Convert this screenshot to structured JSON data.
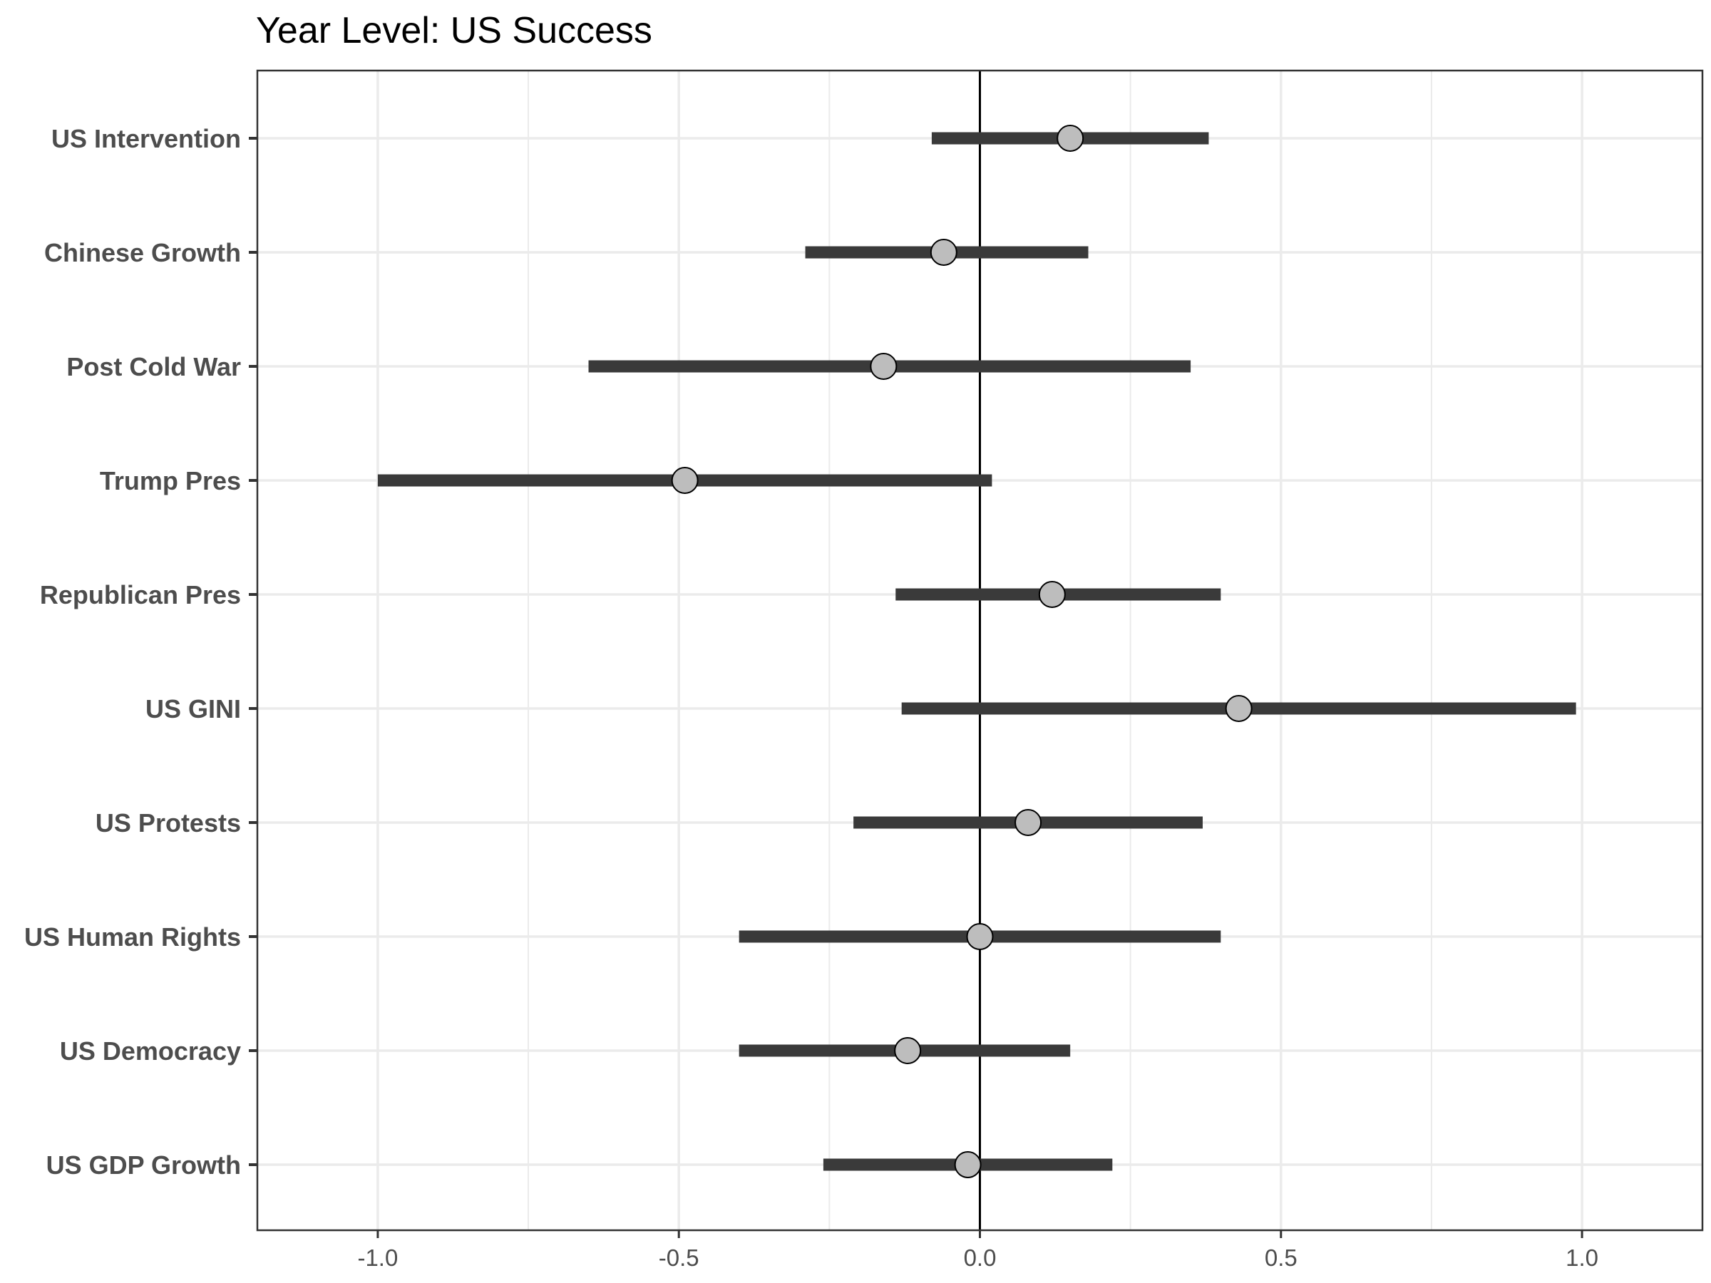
{
  "chart_data": {
    "type": "scatter",
    "subtype": "coefficient-plot",
    "title": "Year Level: US Success",
    "xlabel": "",
    "ylabel": "",
    "xlim": [
      -1.2,
      1.2
    ],
    "x_ticks": [
      -1.0,
      -0.5,
      0.0,
      0.5,
      1.0
    ],
    "x_tick_labels": [
      "-1.0",
      "-0.5",
      "0.0",
      "0.5",
      "1.0"
    ],
    "reference_line_x": 0,
    "grid": true,
    "colors": {
      "interval": "#3a3a3a",
      "point_fill": "#bdbdbd",
      "point_stroke": "#000000",
      "grid": "#ebebeb",
      "reference_line": "#000000",
      "panel_border": "#333333"
    },
    "points": [
      {
        "label": "US Intervention",
        "estimate": 0.15,
        "lower": -0.08,
        "upper": 0.38
      },
      {
        "label": "Chinese Growth",
        "estimate": -0.06,
        "lower": -0.29,
        "upper": 0.18
      },
      {
        "label": "Post Cold War",
        "estimate": -0.16,
        "lower": -0.65,
        "upper": 0.35
      },
      {
        "label": "Trump Pres",
        "estimate": -0.49,
        "lower": -1.0,
        "upper": 0.02
      },
      {
        "label": "Republican Pres",
        "estimate": 0.12,
        "lower": -0.14,
        "upper": 0.4
      },
      {
        "label": "US GINI",
        "estimate": 0.43,
        "lower": -0.13,
        "upper": 0.99
      },
      {
        "label": "US Protests",
        "estimate": 0.08,
        "lower": -0.21,
        "upper": 0.37
      },
      {
        "label": "US Human Rights",
        "estimate": 0.0,
        "lower": -0.4,
        "upper": 0.4
      },
      {
        "label": "US Democracy",
        "estimate": -0.12,
        "lower": -0.4,
        "upper": 0.15
      },
      {
        "label": "US GDP Growth",
        "estimate": -0.02,
        "lower": -0.26,
        "upper": 0.22
      }
    ]
  }
}
